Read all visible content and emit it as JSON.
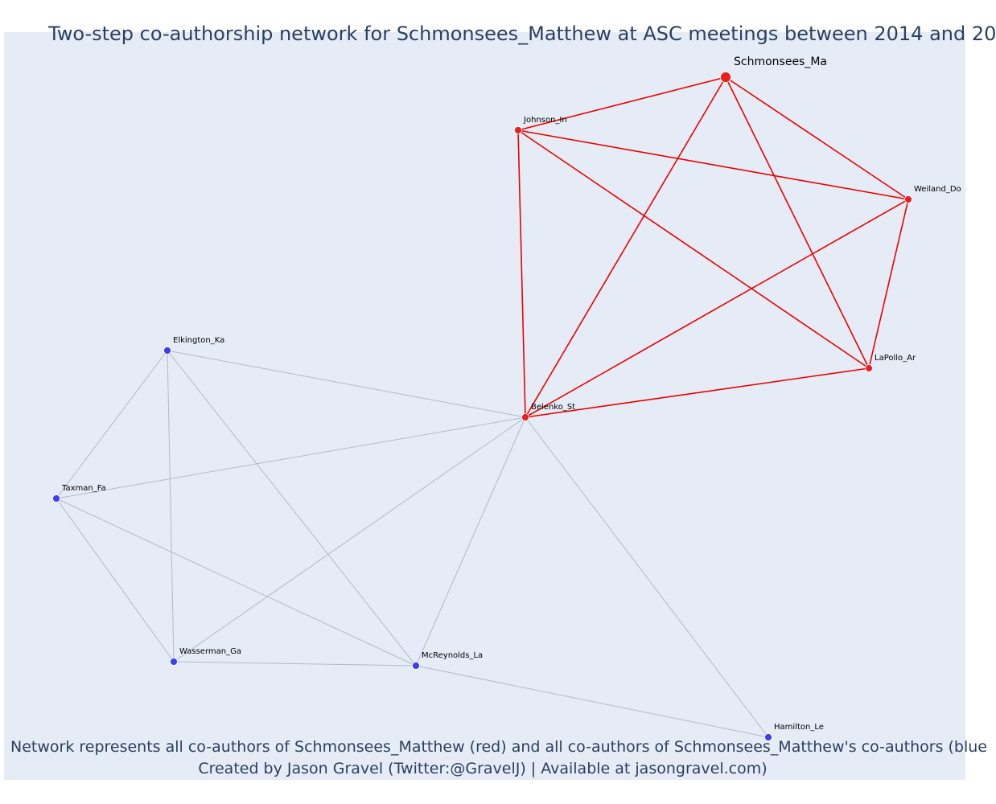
{
  "title": "Two-step co-authorship network for Schmonsees_Matthew at ASC meetings between 2014 and 20",
  "caption_line1": "Network represents all co-authors of Schmonsees_Matthew (red) and all co-authors of Schmonsees_Matthew's co-authors (blue",
  "caption_line2": "Created by Jason Gravel (Twitter:@GravelJ) | Available at jasongravel.com)",
  "colors": {
    "first_step": "#e8201f",
    "second_step": "#3e3ef0",
    "edge_red": "#ee0000",
    "edge_gray": "#b4b8c8",
    "background": "#e5ecf6"
  },
  "nodes": [
    {
      "id": "Schmonsees_Ma",
      "group": "red",
      "focal": true
    },
    {
      "id": "Johnson_In",
      "group": "red"
    },
    {
      "id": "Weiland_Do",
      "group": "red"
    },
    {
      "id": "LaPollo_Ar",
      "group": "red"
    },
    {
      "id": "Belenko_St",
      "group": "red"
    },
    {
      "id": "Elkington_Ka",
      "group": "blue"
    },
    {
      "id": "Taxman_Fa",
      "group": "blue"
    },
    {
      "id": "Wasserman_Ga",
      "group": "blue"
    },
    {
      "id": "McReynolds_La",
      "group": "blue"
    },
    {
      "id": "Hamilton_Le",
      "group": "blue"
    }
  ],
  "edges": [
    [
      "Schmonsees_Ma",
      "Johnson_In",
      "red"
    ],
    [
      "Schmonsees_Ma",
      "Weiland_Do",
      "red"
    ],
    [
      "Schmonsees_Ma",
      "LaPollo_Ar",
      "red"
    ],
    [
      "Schmonsees_Ma",
      "Belenko_St",
      "red"
    ],
    [
      "Johnson_In",
      "Weiland_Do",
      "red"
    ],
    [
      "Johnson_In",
      "LaPollo_Ar",
      "red"
    ],
    [
      "Johnson_In",
      "Belenko_St",
      "red"
    ],
    [
      "Weiland_Do",
      "LaPollo_Ar",
      "red"
    ],
    [
      "Weiland_Do",
      "Belenko_St",
      "red"
    ],
    [
      "LaPollo_Ar",
      "Belenko_St",
      "red"
    ],
    [
      "Belenko_St",
      "Elkington_Ka",
      "gray"
    ],
    [
      "Belenko_St",
      "Taxman_Fa",
      "gray"
    ],
    [
      "Belenko_St",
      "Wasserman_Ga",
      "gray"
    ],
    [
      "Belenko_St",
      "McReynolds_La",
      "gray"
    ],
    [
      "Belenko_St",
      "Hamilton_Le",
      "gray"
    ],
    [
      "Elkington_Ka",
      "Taxman_Fa",
      "gray"
    ],
    [
      "Elkington_Ka",
      "Wasserman_Ga",
      "gray"
    ],
    [
      "Elkington_Ka",
      "McReynolds_La",
      "gray"
    ],
    [
      "Taxman_Fa",
      "Wasserman_Ga",
      "gray"
    ],
    [
      "Taxman_Fa",
      "McReynolds_La",
      "gray"
    ],
    [
      "Wasserman_Ga",
      "McReynolds_La",
      "gray"
    ],
    [
      "McReynolds_La",
      "Hamilton_Le",
      "gray"
    ]
  ]
}
